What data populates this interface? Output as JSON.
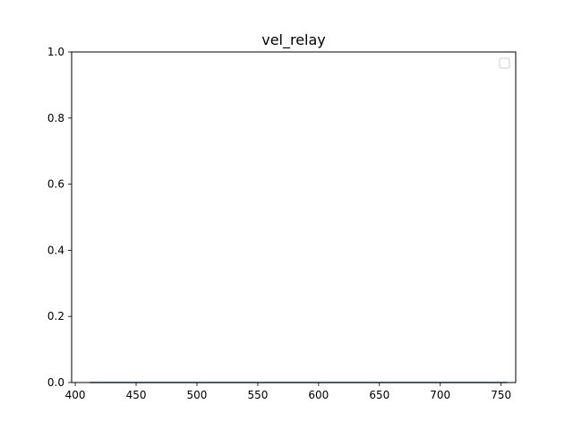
{
  "chart_data": {
    "type": "line",
    "title": "vel_relay",
    "xlabel": "",
    "ylabel": "",
    "xlim": [
      397,
      762
    ],
    "ylim": [
      0.0,
      1.0
    ],
    "x_ticks": [
      400,
      450,
      500,
      550,
      600,
      650,
      700,
      750
    ],
    "y_ticks": [
      0.0,
      0.2,
      0.4,
      0.6,
      0.8,
      1.0
    ],
    "y_tick_labels": [
      "0.0",
      "0.2",
      "0.4",
      "0.6",
      "0.8",
      "1.0"
    ],
    "grid": false,
    "legend": {
      "placement": "top-right",
      "entries": []
    },
    "series": [
      {
        "x": [
          412,
          755
        ],
        "values": [
          0,
          0
        ],
        "color": "#1f77b4"
      }
    ]
  }
}
